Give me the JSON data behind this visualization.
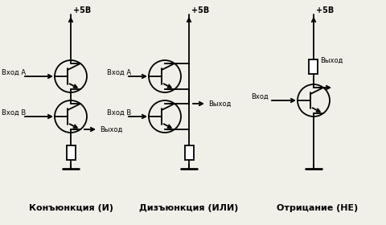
{
  "bg_color": "#f0f0e8",
  "line_color": "#000000",
  "text_color": "#000000",
  "title1": "Конъюнкция (И)",
  "title2": "Дизъюнкция (ИЛИ)",
  "title3": "Отрицание (НЕ)",
  "label_vcc": "+5В",
  "label_inputA": "Вход А",
  "label_inputB": "Вход В",
  "label_input": "Вход",
  "label_output": "Выход",
  "fontsize_label": 7,
  "fontsize_title": 8
}
